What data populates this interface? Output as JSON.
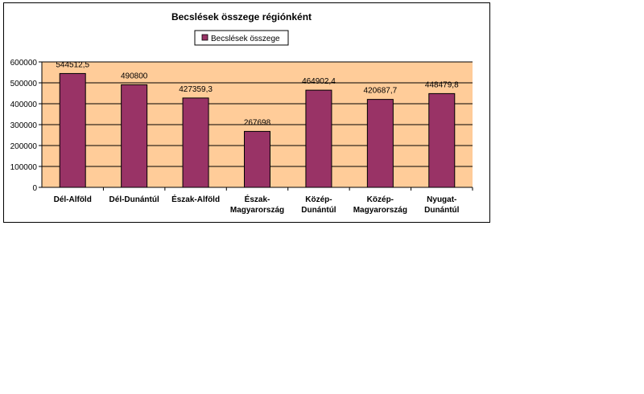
{
  "chart_data": {
    "type": "bar",
    "title": "Becslések összege régiónként",
    "series": [
      {
        "name": "Becslések összege",
        "color": "#993366",
        "values": [
          544512.5,
          490800,
          427359.3,
          267698,
          464902.4,
          420687.7,
          448479.8
        ],
        "labels": [
          "544512,5",
          "490800",
          "427359,3",
          "267698",
          "464902,4",
          "420687,7",
          "448479,8"
        ]
      }
    ],
    "categories": [
      [
        "Dél-Alföld"
      ],
      [
        "Dél-Dunántúl"
      ],
      [
        "Észak-Alföld"
      ],
      [
        "Észak-",
        "Magyarország"
      ],
      [
        "Közép-",
        "Dunántúl"
      ],
      [
        "Közép-",
        "Magyarország"
      ],
      [
        "Nyugat-",
        "Dunántúl"
      ]
    ],
    "y_ticks": [
      "0",
      "100000",
      "200000",
      "300000",
      "400000",
      "500000",
      "600000"
    ],
    "ylim": [
      0,
      600000
    ],
    "plot_background": "#FFCC99",
    "grid": true,
    "legend_position": "top"
  }
}
